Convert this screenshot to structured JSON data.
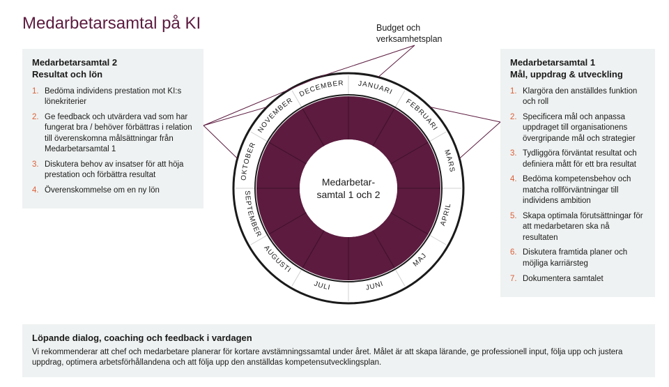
{
  "title": "Medarbetarsamtal på KI",
  "top_label": "Budget och verksamhetsplan",
  "left_box": {
    "title_line1": "Medarbetarsamtal 2",
    "title_line2": "Resultat och lön",
    "items": [
      "Bedöma individens prestation mot KI:s lönekriterier",
      "Ge feedback och utvärdera vad som har fungerat bra / behöver förbättras i relation till överenskomna målsättningar från Medarbetarsamtal 1",
      "Diskutera behov av insatser för att höja prestation och förbättra resultat",
      "Överenskommelse om en ny lön"
    ]
  },
  "right_box": {
    "title_line1": "Medarbetarsamtal 1",
    "title_line2": "Mål, uppdrag & utveckling",
    "items": [
      "Klargöra den anställdes funktion och roll",
      "Specificera mål och anpassa uppdraget till organisationens övergripande mål och strategier",
      "Tydliggöra förväntat resultat och definiera mått för ett bra resultat",
      "Bedöma kompetensbehov och matcha rollförväntningar till individens ambition",
      "Skapa optimala förutsättningar för att medarbetaren ska nå resultaten",
      "Diskutera framtida planer och möjliga karriärsteg",
      "Dokumentera samtalet"
    ]
  },
  "bottom_box": {
    "title": "Löpande dialog, coaching och feedback i vardagen",
    "body": "Vi rekommenderar att chef och medarbetare planerar för kortare avstämningssamtal under året. Målet är att skapa lärande, ge professionell input, följa upp och justera uppdrag, optimera arbetsförhållandena och att följa upp den anställdas kompetensutvecklingsplan."
  },
  "center_text_line1": "Medarbetar-",
  "center_text_line2": "samtal 1 och 2",
  "months": [
    "JANUARI",
    "FEBRUARI",
    "MARS",
    "APRIL",
    "MAJ",
    "JUNI",
    "JULI",
    "AUGUSTI",
    "SEPTEMBER",
    "OKTOBER",
    "NOVEMBER",
    "DECEMBER"
  ],
  "colors": {
    "title": "#5c1b3f",
    "accent": "#d9603a",
    "ring_fill": "#5c1b3f",
    "ring_lines": "#3e1029",
    "outer_stroke": "#1a1a1a",
    "bg_box": "#eff2f2"
  },
  "wheel": {
    "outer_r": 165,
    "label_ring_outer": 162,
    "label_ring_inner": 134,
    "fill_ring_outer": 132,
    "fill_ring_inner": 70,
    "label_path_r": 148,
    "segments": 12
  }
}
